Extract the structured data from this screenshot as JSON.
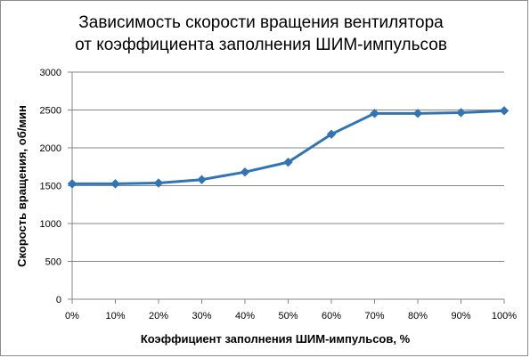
{
  "chart_data": {
    "type": "line",
    "title": "Зависимость скорости вращения вентилятора от коэффициента заполнения ШИМ-импульсов",
    "title_lines": [
      "Зависимость скорости вращения вентилятора",
      "от коэффициента  заполнения ШИМ-импульсов"
    ],
    "xlabel": "Коэффициент заполнения ШИМ-импульсов, %",
    "ylabel": "Скорость вращения, об/мин",
    "categories": [
      "0%",
      "10%",
      "20%",
      "30%",
      "40%",
      "50%",
      "60%",
      "70%",
      "80%",
      "90%",
      "100%"
    ],
    "series": [
      {
        "values": [
          1525,
          1525,
          1535,
          1580,
          1680,
          1810,
          2180,
          2455,
          2455,
          2465,
          2490
        ]
      }
    ],
    "ylim": [
      0,
      3000
    ],
    "yticks": [
      "0",
      "500",
      "1000",
      "1500",
      "2000",
      "2500",
      "3000"
    ],
    "grid": true,
    "legend": "none",
    "line_color": "#2f75b5",
    "grid_color": "#858585"
  }
}
